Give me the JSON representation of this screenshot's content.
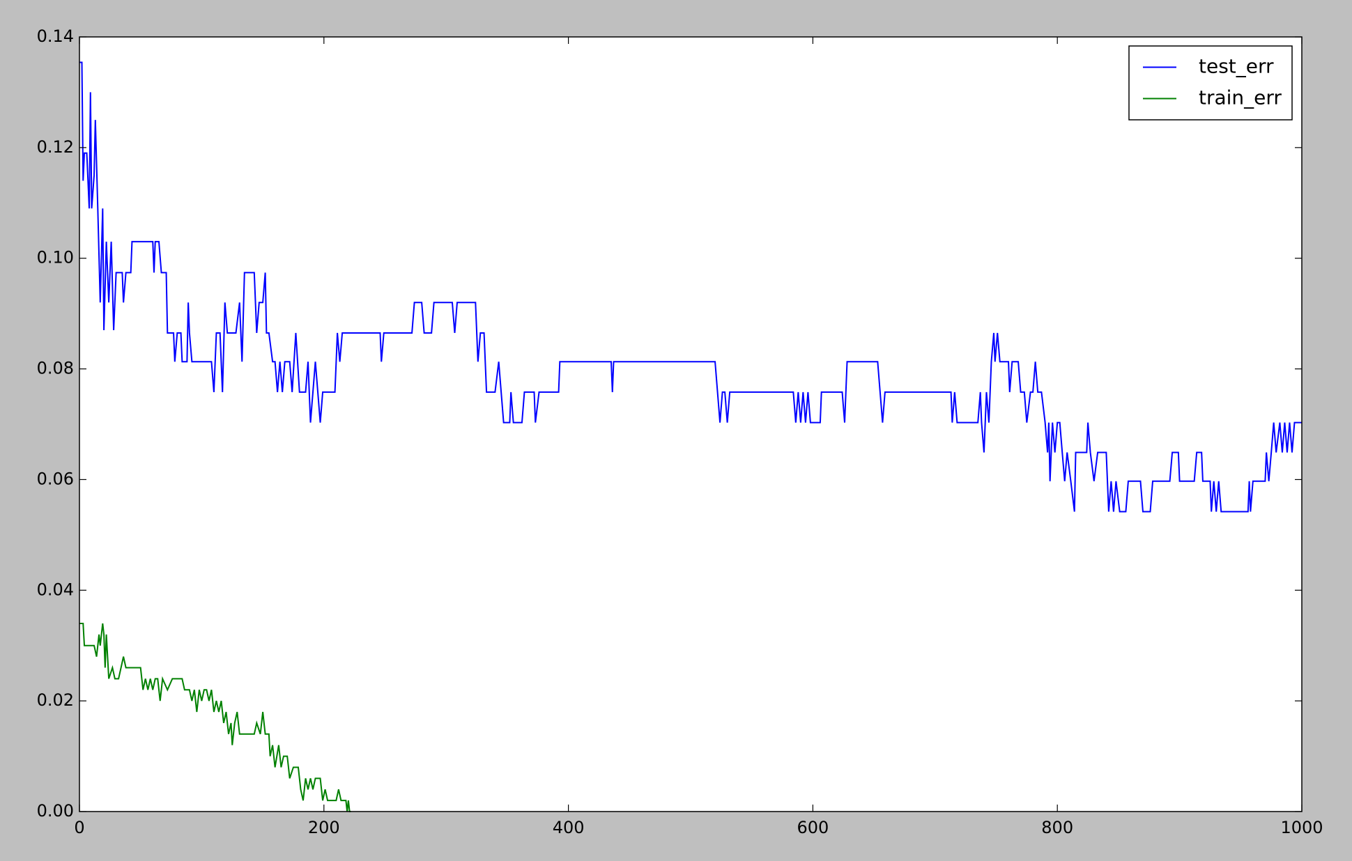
{
  "chart_data": {
    "type": "line",
    "xlim": [
      0,
      1000
    ],
    "xticks": [
      0,
      200,
      400,
      600,
      800,
      1000
    ],
    "ylim": [
      0,
      0.14
    ],
    "yticks": [
      {
        "value": 0,
        "label": "0.00"
      },
      {
        "value": 0.02,
        "label": "0.02"
      },
      {
        "value": 0.04,
        "label": "0.04"
      },
      {
        "value": 0.06,
        "label": "0.06"
      },
      {
        "value": 0.08,
        "label": "0.08"
      },
      {
        "value": 0.1,
        "label": "0.10"
      },
      {
        "value": 0.12,
        "label": "0.12"
      },
      {
        "value": 0.14,
        "label": "0.14"
      }
    ],
    "legend": "upper right",
    "series": [
      {
        "name": "test_err",
        "color": "#0000ff",
        "x": [
          0,
          2,
          3,
          4,
          6,
          8,
          9,
          10,
          12,
          13,
          15,
          17,
          19,
          20,
          22,
          24,
          26,
          28,
          30,
          35,
          36,
          38,
          42,
          43,
          60,
          61,
          62,
          65,
          67,
          71,
          72,
          77,
          78,
          80,
          83,
          84,
          88,
          89,
          90,
          92,
          108,
          110,
          112,
          115,
          117,
          119,
          121,
          128,
          131,
          133,
          135,
          143,
          145,
          147,
          150,
          152,
          153,
          155,
          158,
          160,
          162,
          164,
          166,
          168,
          172,
          174,
          177,
          180,
          185,
          187,
          189,
          191,
          193,
          195,
          197,
          199,
          209,
          211,
          213,
          215,
          246,
          247,
          249,
          272,
          274,
          280,
          282,
          288,
          290,
          305,
          307,
          309,
          324,
          326,
          328,
          331,
          333,
          340,
          343,
          345,
          347,
          352,
          353,
          355,
          362,
          364,
          372,
          373,
          376,
          392,
          393,
          435,
          436,
          437,
          520,
          522,
          524,
          526,
          528,
          530,
          532,
          584,
          586,
          588,
          590,
          592,
          594,
          596,
          598,
          606,
          607,
          624,
          626,
          628,
          653,
          655,
          657,
          659,
          713,
          714,
          716,
          718,
          735,
          737,
          738,
          740,
          742,
          744,
          746,
          748,
          749,
          751,
          753,
          760,
          761,
          763,
          768,
          770,
          773,
          775,
          778,
          780,
          782,
          784,
          787,
          790,
          792,
          793,
          794,
          796,
          798,
          800,
          802,
          804,
          806,
          808,
          811,
          814,
          815,
          824,
          825,
          827,
          830,
          833,
          840,
          842,
          844,
          846,
          848,
          851,
          856,
          858,
          868,
          870,
          876,
          878,
          892,
          894,
          899,
          900,
          912,
          914,
          918,
          919,
          925,
          926,
          928,
          930,
          932,
          934,
          956,
          957,
          958,
          960,
          970,
          971,
          973,
          975,
          977,
          979,
          982,
          984,
          986,
          988,
          990,
          992,
          994,
          1000
        ],
        "values": [
          0.1354,
          0.1354,
          0.114,
          0.119,
          0.119,
          0.109,
          0.13,
          0.109,
          0.115,
          0.125,
          0.109,
          0.092,
          0.109,
          0.087,
          0.103,
          0.092,
          0.103,
          0.087,
          0.0974,
          0.0974,
          0.092,
          0.0974,
          0.0974,
          0.103,
          0.103,
          0.0974,
          0.103,
          0.103,
          0.0974,
          0.0974,
          0.0865,
          0.0865,
          0.0813,
          0.0865,
          0.0865,
          0.0813,
          0.0813,
          0.092,
          0.0865,
          0.0813,
          0.0813,
          0.0758,
          0.0865,
          0.0865,
          0.0758,
          0.092,
          0.0865,
          0.0865,
          0.092,
          0.0813,
          0.0974,
          0.0974,
          0.0865,
          0.092,
          0.092,
          0.0974,
          0.0865,
          0.0865,
          0.0813,
          0.0813,
          0.0758,
          0.0813,
          0.0758,
          0.0813,
          0.0813,
          0.0758,
          0.0865,
          0.0758,
          0.0758,
          0.0813,
          0.0703,
          0.0758,
          0.0813,
          0.0758,
          0.0703,
          0.0758,
          0.0758,
          0.0865,
          0.0813,
          0.0865,
          0.0865,
          0.0813,
          0.0865,
          0.0865,
          0.092,
          0.092,
          0.0865,
          0.0865,
          0.092,
          0.092,
          0.0865,
          0.092,
          0.092,
          0.0813,
          0.0865,
          0.0865,
          0.0758,
          0.0758,
          0.0813,
          0.0758,
          0.0703,
          0.0703,
          0.0758,
          0.0703,
          0.0703,
          0.0758,
          0.0758,
          0.0703,
          0.0758,
          0.0758,
          0.0813,
          0.0813,
          0.0758,
          0.0813,
          0.0813,
          0.0758,
          0.0703,
          0.0758,
          0.0758,
          0.0703,
          0.0758,
          0.0758,
          0.0703,
          0.0758,
          0.0703,
          0.0758,
          0.0703,
          0.0758,
          0.0703,
          0.0703,
          0.0758,
          0.0758,
          0.0703,
          0.0813,
          0.0813,
          0.0758,
          0.0703,
          0.0758,
          0.0758,
          0.0703,
          0.0758,
          0.0703,
          0.0703,
          0.0758,
          0.0703,
          0.0649,
          0.0758,
          0.0703,
          0.0813,
          0.0865,
          0.0813,
          0.0865,
          0.0813,
          0.0813,
          0.0758,
          0.0813,
          0.0813,
          0.0758,
          0.0758,
          0.0703,
          0.0758,
          0.0758,
          0.0813,
          0.0758,
          0.0758,
          0.0703,
          0.0649,
          0.0703,
          0.0597,
          0.0703,
          0.0649,
          0.0703,
          0.0703,
          0.0649,
          0.0597,
          0.0649,
          0.0597,
          0.0542,
          0.0649,
          0.0649,
          0.0703,
          0.0649,
          0.0597,
          0.0649,
          0.0649,
          0.0542,
          0.0597,
          0.0542,
          0.0597,
          0.0542,
          0.0542,
          0.0597,
          0.0597,
          0.0542,
          0.0542,
          0.0597,
          0.0597,
          0.0649,
          0.0649,
          0.0597,
          0.0597,
          0.0649,
          0.0649,
          0.0597,
          0.0597,
          0.0542,
          0.0597,
          0.0542,
          0.0597,
          0.0542,
          0.0542,
          0.0597,
          0.0542,
          0.0597,
          0.0597,
          0.0649,
          0.0597,
          0.0649,
          0.0703,
          0.0649,
          0.0703,
          0.0649,
          0.0703,
          0.0649,
          0.0703,
          0.0649,
          0.0703,
          0.0703
        ]
      },
      {
        "name": "train_err",
        "color": "#008000",
        "x": [
          0,
          3,
          4,
          12,
          14,
          16,
          17,
          19,
          20,
          21,
          22,
          24,
          27,
          29,
          32,
          34,
          36,
          38,
          50,
          52,
          54,
          56,
          58,
          60,
          62,
          64,
          66,
          68,
          72,
          76,
          84,
          86,
          90,
          92,
          94,
          96,
          98,
          100,
          102,
          104,
          106,
          108,
          110,
          112,
          114,
          116,
          118,
          120,
          122,
          124,
          125,
          127,
          129,
          131,
          135,
          143,
          145,
          148,
          150,
          152,
          155,
          156,
          158,
          160,
          163,
          165,
          167,
          170,
          172,
          175,
          179,
          181,
          183,
          185,
          187,
          189,
          191,
          193,
          197,
          199,
          201,
          203,
          210,
          212,
          214,
          218,
          219,
          220,
          221,
          222
        ],
        "values": [
          0.034,
          0.034,
          0.03,
          0.03,
          0.028,
          0.032,
          0.03,
          0.034,
          0.032,
          0.026,
          0.032,
          0.024,
          0.026,
          0.024,
          0.024,
          0.026,
          0.028,
          0.026,
          0.026,
          0.022,
          0.024,
          0.022,
          0.024,
          0.022,
          0.024,
          0.024,
          0.02,
          0.024,
          0.022,
          0.024,
          0.024,
          0.022,
          0.022,
          0.02,
          0.022,
          0.018,
          0.022,
          0.02,
          0.022,
          0.022,
          0.02,
          0.022,
          0.018,
          0.02,
          0.018,
          0.02,
          0.016,
          0.018,
          0.014,
          0.016,
          0.012,
          0.016,
          0.018,
          0.014,
          0.014,
          0.014,
          0.016,
          0.014,
          0.018,
          0.014,
          0.014,
          0.01,
          0.012,
          0.008,
          0.012,
          0.008,
          0.01,
          0.01,
          0.006,
          0.008,
          0.008,
          0.004,
          0.002,
          0.006,
          0.004,
          0.006,
          0.004,
          0.006,
          0.006,
          0.002,
          0.004,
          0.002,
          0.002,
          0.004,
          0.002,
          0.002,
          0,
          0.002,
          0,
          0
        ]
      }
    ]
  }
}
